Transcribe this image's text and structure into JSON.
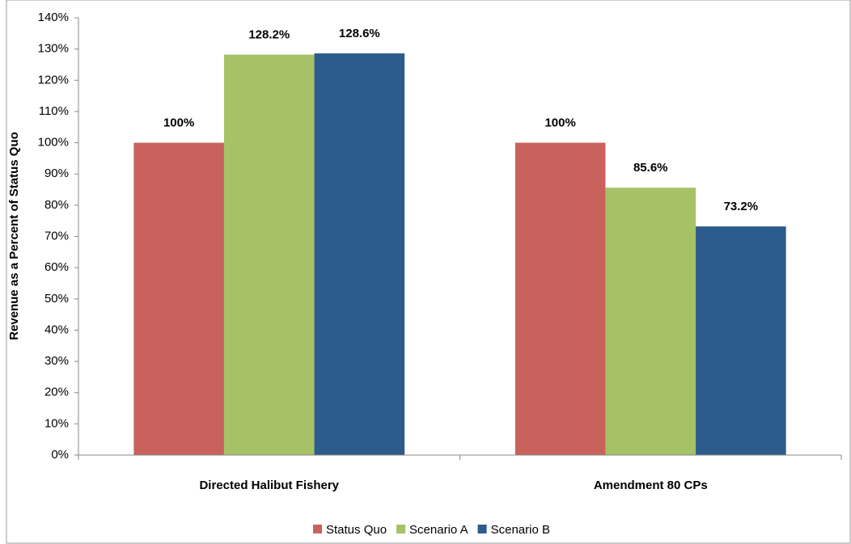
{
  "chart_data": {
    "type": "bar",
    "y_label": "Revenue as a Percent of Status Quo",
    "categories": [
      "Directed Halibut Fishery",
      "Amendment 80 CPs"
    ],
    "series": [
      {
        "name": "Status Quo",
        "color": "#c9625c",
        "values": [
          100,
          100
        ],
        "value_labels": [
          "100%",
          "100%"
        ]
      },
      {
        "name": "Scenario A",
        "color": "#a5c266",
        "values": [
          128.2,
          85.6
        ],
        "value_labels": [
          "128.2%",
          "85.6%"
        ]
      },
      {
        "name": "Scenario B",
        "color": "#2d5b8b",
        "values": [
          128.6,
          73.2
        ],
        "value_labels": [
          "128.6%",
          "73.2%"
        ]
      }
    ],
    "ylim": [
      0,
      140
    ],
    "yticks": [
      {
        "value": 0,
        "label": "0%"
      },
      {
        "value": 10,
        "label": "10%"
      },
      {
        "value": 20,
        "label": "20%"
      },
      {
        "value": 30,
        "label": "30%"
      },
      {
        "value": 40,
        "label": "40%"
      },
      {
        "value": 50,
        "label": "50%"
      },
      {
        "value": 60,
        "label": "60%"
      },
      {
        "value": 70,
        "label": "70%"
      },
      {
        "value": 80,
        "label": "80%"
      },
      {
        "value": 90,
        "label": "90%"
      },
      {
        "value": 100,
        "label": "100%"
      },
      {
        "value": 110,
        "label": "110%"
      },
      {
        "value": 120,
        "label": "120%"
      },
      {
        "value": 130,
        "label": "130%"
      },
      {
        "value": 140,
        "label": "140%"
      }
    ],
    "grid": false,
    "legend": "bottom"
  }
}
